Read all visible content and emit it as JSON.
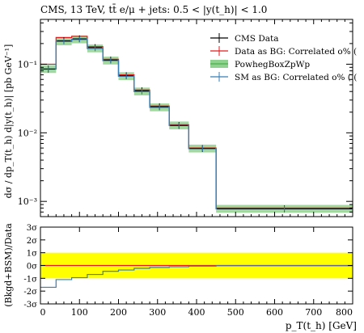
{
  "chart_data": {
    "type": "line",
    "title": "CMS, 13 TeV, tt̄ e/μ + jets: 0.5 < |y(t_h)| < 1.0",
    "ylabel_main": "dσ / dp_T(t_h) d|y(t_h)| [pb GeV⁻¹]",
    "ylabel_ratio": "(Bkgd+BSM)/Data",
    "xlabel": "p_T(t_h) [GeV]",
    "xlim": [
      0,
      800
    ],
    "ylim_main": [
      0.0006,
      0.45
    ],
    "yscale_main": "log",
    "ylim_ratio": [
      -3,
      3
    ],
    "x_ticks": [
      "0",
      "100",
      "200",
      "300",
      "400",
      "500",
      "600",
      "700",
      "800"
    ],
    "y_ticks_main": [
      "10⁻³",
      "10⁻²",
      "10⁻¹"
    ],
    "y_ticks_ratio": [
      "3σ",
      "2σ",
      "1σ",
      "0σ",
      "-1σ",
      "-2σ",
      "-3σ"
    ],
    "bin_edges": [
      0,
      40,
      80,
      120,
      160,
      200,
      240,
      280,
      330,
      380,
      450,
      800
    ],
    "series": [
      {
        "name": "CMS Data",
        "color": "#000000",
        "values": [
          0.085,
          0.22,
          0.235,
          0.175,
          0.115,
          0.068,
          0.041,
          0.024,
          0.0128,
          0.0059,
          0.00078
        ]
      },
      {
        "name": "Data as BG: Correlated o% (",
        "color": "#e41a1c",
        "values": [
          0.1,
          0.245,
          0.255,
          0.18,
          0.118,
          0.07,
          0.042,
          0.0245,
          0.0131,
          0.006,
          0.0008
        ]
      },
      {
        "name": "PowhegBoxZpWp",
        "color": "#4daf4a",
        "band": true,
        "values": [
          0.085,
          0.215,
          0.23,
          0.17,
          0.113,
          0.067,
          0.04,
          0.0235,
          0.0128,
          0.0059,
          0.00078
        ]
      },
      {
        "name": "SM as BG: Correlated o% ( (",
        "color": "#377eb8",
        "values": [
          0.085,
          0.215,
          0.23,
          0.17,
          0.113,
          0.067,
          0.04,
          0.0235,
          0.0128,
          0.0059,
          0.00078
        ]
      }
    ],
    "ratio_band": [
      -1,
      1
    ],
    "ratio_band_color": "#ffff00",
    "ratio_series": [
      {
        "name": "Data as BG: Correlated o% (",
        "color": "#e41a1c",
        "values": [
          0,
          0,
          0,
          0,
          0,
          0,
          0,
          0,
          0,
          0,
          0
        ]
      },
      {
        "name": "SM as BG: Correlated o% ( (",
        "color": "#377eb8",
        "values": [
          -1.7,
          -1.1,
          -0.95,
          -0.7,
          -0.45,
          -0.35,
          -0.22,
          -0.15,
          -0.1,
          -0.05,
          -0.02
        ]
      }
    ]
  }
}
